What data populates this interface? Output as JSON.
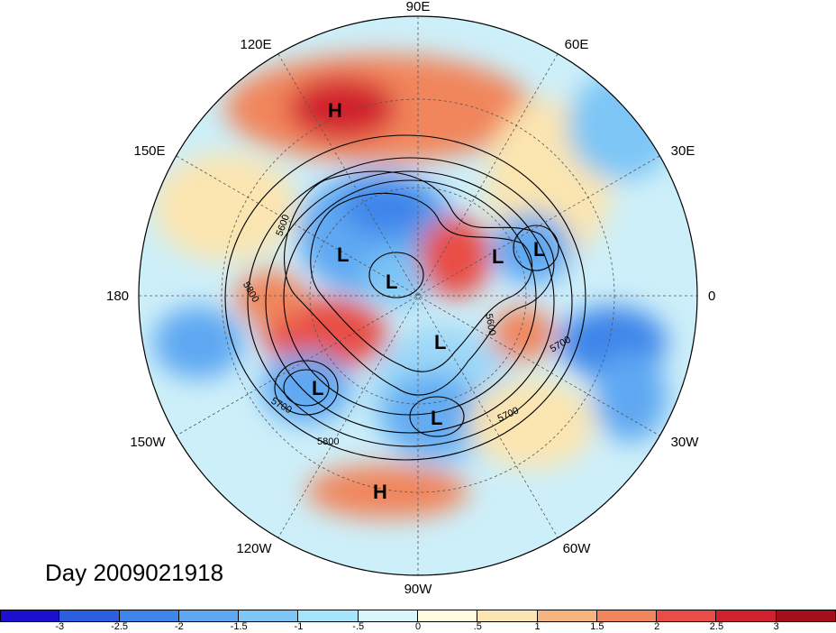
{
  "lon_labels": {
    "n90e": "90E",
    "n60e": "60E",
    "n120e": "120E",
    "n30e": "30E",
    "n150e": "150E",
    "n180": "180",
    "n0": "0",
    "n150w": "150W",
    "n30w": "30W",
    "n120w": "120W",
    "n60w": "60W",
    "n90w": "90W"
  },
  "contour_labels": {
    "c5600a": "5600",
    "c5800a": "5800",
    "c5700a": "5700",
    "c5800b": "5800",
    "c5600b": "5600",
    "c5700b": "5700",
    "c5700c": "5700"
  },
  "centers": {
    "h1": "H",
    "h2": "H",
    "l1": "L",
    "l2": "L",
    "l3": "L",
    "l4": "L",
    "l5": "L",
    "l6": "L",
    "l7": "L"
  },
  "day_label": "Day 2009021918",
  "colorbar": {
    "ticks": [
      "-3",
      "-2.5",
      "-2",
      "-1.5",
      "-1",
      "-.5",
      "0",
      ".5",
      "1",
      "1.5",
      "2",
      "2.5",
      "3"
    ],
    "colors": [
      "#1d0fd0",
      "#2c5fe0",
      "#3e85ea",
      "#5ea8f2",
      "#7dc6f6",
      "#a6e4fb",
      "#daf6fd",
      "#fffbdf",
      "#fbe5b0",
      "#f6b47f",
      "#f1855c",
      "#e94d45",
      "#d2212e",
      "#a30e1b"
    ]
  }
}
